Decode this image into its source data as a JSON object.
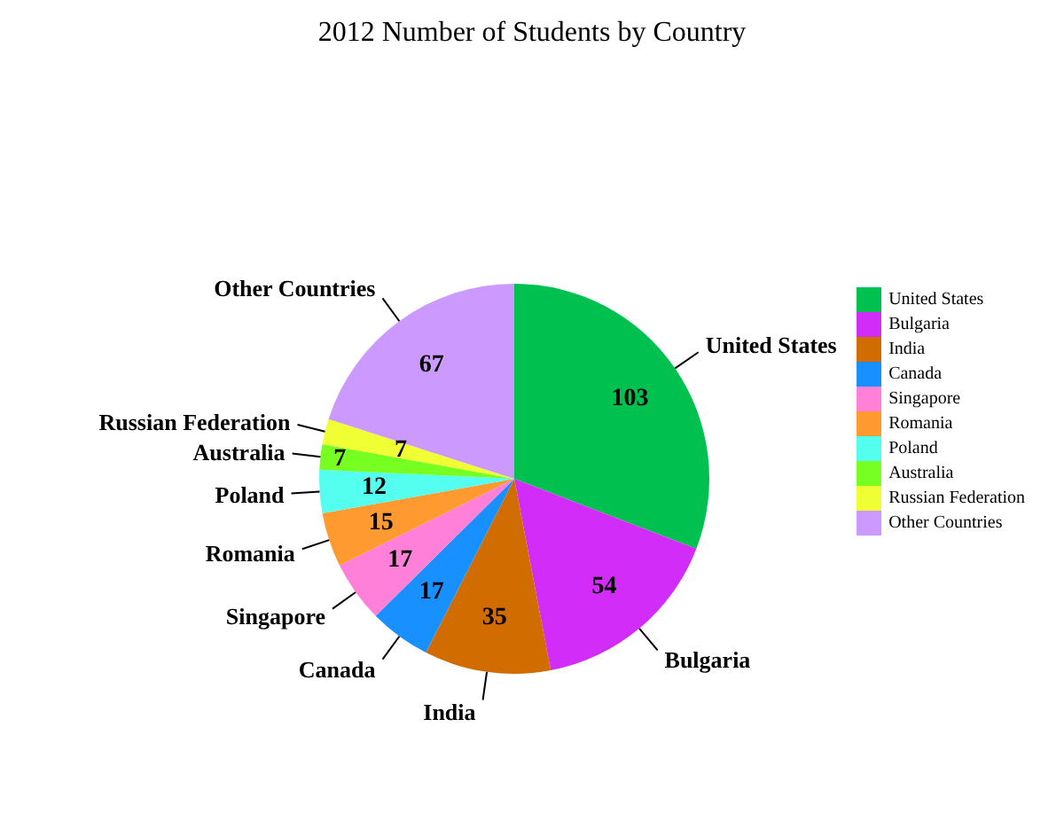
{
  "chart_data": {
    "type": "pie",
    "title": "2012 Number of Students by Country",
    "categories": [
      "United States",
      "Bulgaria",
      "India",
      "Canada",
      "Singapore",
      "Romania",
      "Poland",
      "Australia",
      "Russian Federation",
      "Other Countries"
    ],
    "values": [
      103,
      54,
      35,
      17,
      17,
      15,
      12,
      7,
      7,
      67
    ],
    "colors": [
      "#00c050",
      "#d22cf8",
      "#d06c00",
      "#1890ff",
      "#ff80d8",
      "#ff9a30",
      "#55fff0",
      "#77ff22",
      "#f0ff33",
      "#cc99ff"
    ],
    "data_labels": true,
    "legend": "right"
  }
}
